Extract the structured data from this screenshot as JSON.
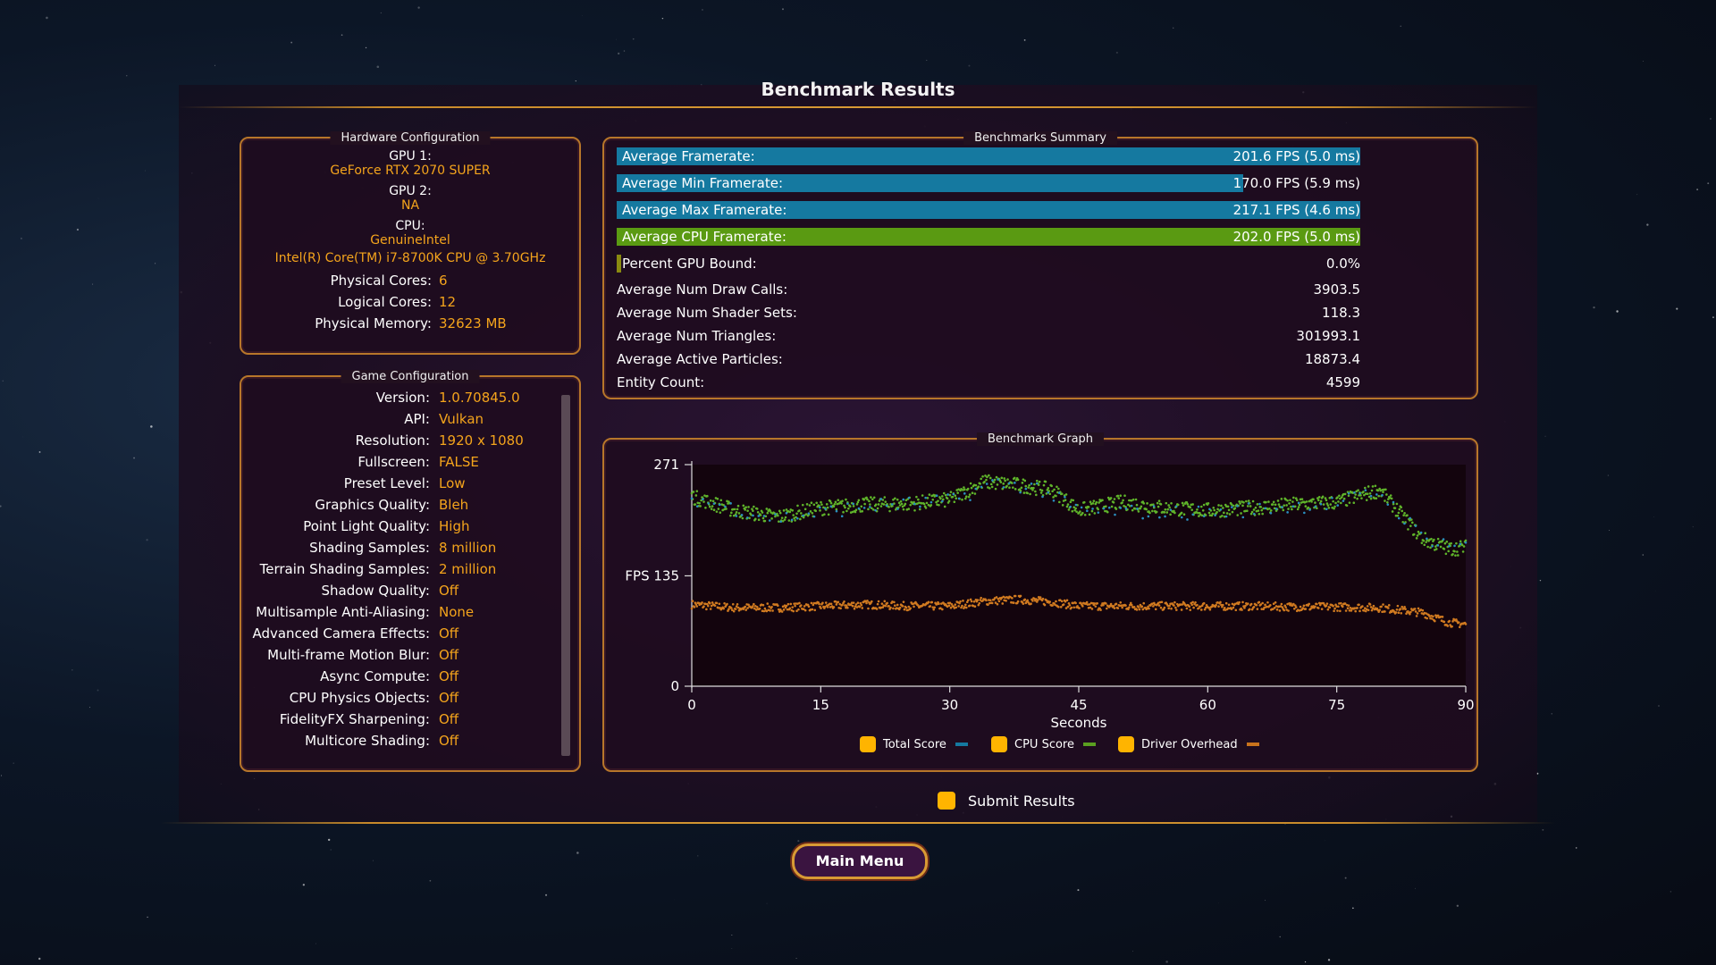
{
  "title": "Benchmark Results",
  "hardware": {
    "label": "Hardware Configuration",
    "gpu1_label": "GPU 1:",
    "gpu1": "GeForce RTX 2070 SUPER",
    "gpu2_label": "GPU 2:",
    "gpu2": "NA",
    "cpu_label": "CPU:",
    "cpu_vendor": "GenuineIntel",
    "cpu_model": "Intel(R) Core(TM) i7-8700K CPU @ 3.70GHz",
    "physical_cores_label": "Physical Cores:",
    "physical_cores": "6",
    "logical_cores_label": "Logical Cores:",
    "logical_cores": "12",
    "memory_label": "Physical Memory:",
    "memory": "32623  MB"
  },
  "game_config": {
    "label": "Game Configuration",
    "rows": [
      {
        "k": "Version:",
        "v": "1.0.70845.0"
      },
      {
        "k": "API:",
        "v": "Vulkan"
      },
      {
        "k": "Resolution:",
        "v": "1920 x 1080"
      },
      {
        "k": "Fullscreen:",
        "v": "FALSE"
      },
      {
        "k": "Preset Level:",
        "v": "Low"
      },
      {
        "k": "Graphics Quality:",
        "v": "Bleh"
      },
      {
        "k": "Point Light Quality:",
        "v": "High"
      },
      {
        "k": "Shading Samples:",
        "v": "8 million"
      },
      {
        "k": "Terrain Shading Samples:",
        "v": "2 million"
      },
      {
        "k": "Shadow Quality:",
        "v": "Off"
      },
      {
        "k": "Multisample Anti-Aliasing:",
        "v": "None"
      },
      {
        "k": "Advanced Camera Effects:",
        "v": "Off"
      },
      {
        "k": "Multi-frame Motion Blur:",
        "v": "Off"
      },
      {
        "k": "Async Compute:",
        "v": "Off"
      },
      {
        "k": "CPU Physics Objects:",
        "v": "Off"
      },
      {
        "k": "FidelityFX Sharpening:",
        "v": "Off"
      },
      {
        "k": "Multicore Shading:",
        "v": "Off"
      }
    ]
  },
  "summary": {
    "label": "Benchmarks Summary",
    "bars": [
      {
        "label": "Average Framerate:",
        "value": "201.6 FPS (5.0 ms)",
        "fraction": 1.0,
        "color": "#1579a0"
      },
      {
        "label": "Average Min Framerate:",
        "value": "170.0 FPS (5.9 ms)",
        "fraction": 0.843,
        "color": "#1579a0"
      },
      {
        "label": "Average Max Framerate:",
        "value": "217.1 FPS (4.6 ms)",
        "fraction": 1.0,
        "color": "#1579a0"
      },
      {
        "label": "Average CPU Framerate:",
        "value": "202.0 FPS (5.0 ms)",
        "fraction": 1.0,
        "color": "#5a9a12"
      },
      {
        "label": "Percent GPU Bound:",
        "value": "0.0%",
        "fraction": 0.0,
        "color": "#8a8a10"
      }
    ],
    "stats": [
      {
        "label": "Average Num Draw Calls:",
        "value": "3903.5"
      },
      {
        "label": "Average Num Shader Sets:",
        "value": "118.3"
      },
      {
        "label": "Average Num Triangles:",
        "value": "301993.1"
      },
      {
        "label": "Average Active Particles:",
        "value": "18873.4"
      },
      {
        "label": "Entity Count:",
        "value": "4599"
      }
    ]
  },
  "graph": {
    "label": "Benchmark Graph",
    "y_tick_labels": [
      "271",
      "FPS 135",
      "0"
    ],
    "x_tick_labels": [
      "0",
      "15",
      "30",
      "45",
      "60",
      "75",
      "90"
    ],
    "xlabel": "Seconds",
    "legend": [
      {
        "name": "Total Score",
        "color": "#1579a0"
      },
      {
        "name": "CPU Score",
        "color": "#5aa020"
      },
      {
        "name": "Driver Overhead",
        "color": "#c8731c"
      }
    ]
  },
  "chart_data": {
    "type": "scatter",
    "xlabel": "Seconds",
    "ylabel": "FPS",
    "xlim": [
      0,
      90
    ],
    "ylim": [
      0,
      271
    ],
    "series": [
      {
        "name": "CPU Score",
        "x": [
          0,
          5,
          10,
          15,
          20,
          25,
          30,
          34,
          38,
          42,
          45,
          50,
          55,
          60,
          65,
          70,
          75,
          80,
          85,
          88,
          90
        ],
        "y": [
          232,
          215,
          207,
          218,
          222,
          223,
          228,
          250,
          246,
          240,
          215,
          225,
          218,
          215,
          218,
          222,
          225,
          240,
          180,
          168,
          170
        ]
      },
      {
        "name": "Total Score",
        "x": [
          0,
          10,
          20,
          30,
          35,
          40,
          45,
          60,
          75,
          80,
          85,
          90
        ],
        "y": [
          230,
          205,
          220,
          226,
          248,
          244,
          214,
          212,
          224,
          238,
          182,
          170
        ]
      },
      {
        "name": "Driver Overhead",
        "x": [
          0,
          5,
          10,
          15,
          20,
          25,
          30,
          34,
          38,
          42,
          45,
          50,
          55,
          60,
          65,
          70,
          75,
          80,
          85,
          88,
          90
        ],
        "y": [
          100,
          96,
          96,
          98,
          100,
          98,
          98,
          104,
          106,
          103,
          98,
          98,
          98,
          98,
          98,
          97,
          97,
          96,
          90,
          78,
          76
        ]
      }
    ]
  },
  "submit_label": "Submit Results",
  "main_menu_label": "Main Menu"
}
